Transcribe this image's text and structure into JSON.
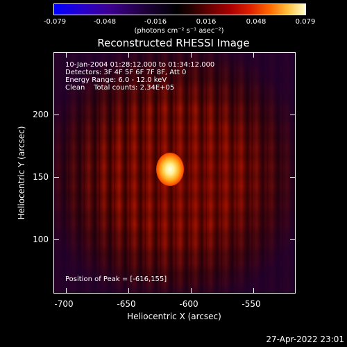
{
  "colorbar": {
    "ticks": [
      "-0.079",
      "-0.048",
      "-0.016",
      "0.016",
      "0.048",
      "0.079"
    ],
    "units": "(photons cm⁻² s⁻¹ asec⁻²)"
  },
  "title": "Reconstructed RHESSI Image",
  "info": {
    "time": "10-Jan-2004 01:28:12.000 to 01:34:12.000",
    "detectors": "Detectors: 3F 4F 5F 6F 7F 8F, Att 0",
    "energy": "Energy Range: 6.0 - 12.0 keV",
    "clean": "Clean    Total counts: 2.34E+05",
    "peak": "Position of Peak = [-616,155]"
  },
  "axes": {
    "xlabel": "Heliocentric X (arcsec)",
    "ylabel": "Heliocentric Y (arcsec)",
    "xticks": [
      "-700",
      "-650",
      "-600",
      "-550"
    ],
    "yticks": [
      "200",
      "150",
      "100"
    ]
  },
  "timestamp": "27-Apr-2022 23:01",
  "colors": {
    "colormap": "blue-black-red-yellow-white",
    "frame": "#ffffff"
  }
}
